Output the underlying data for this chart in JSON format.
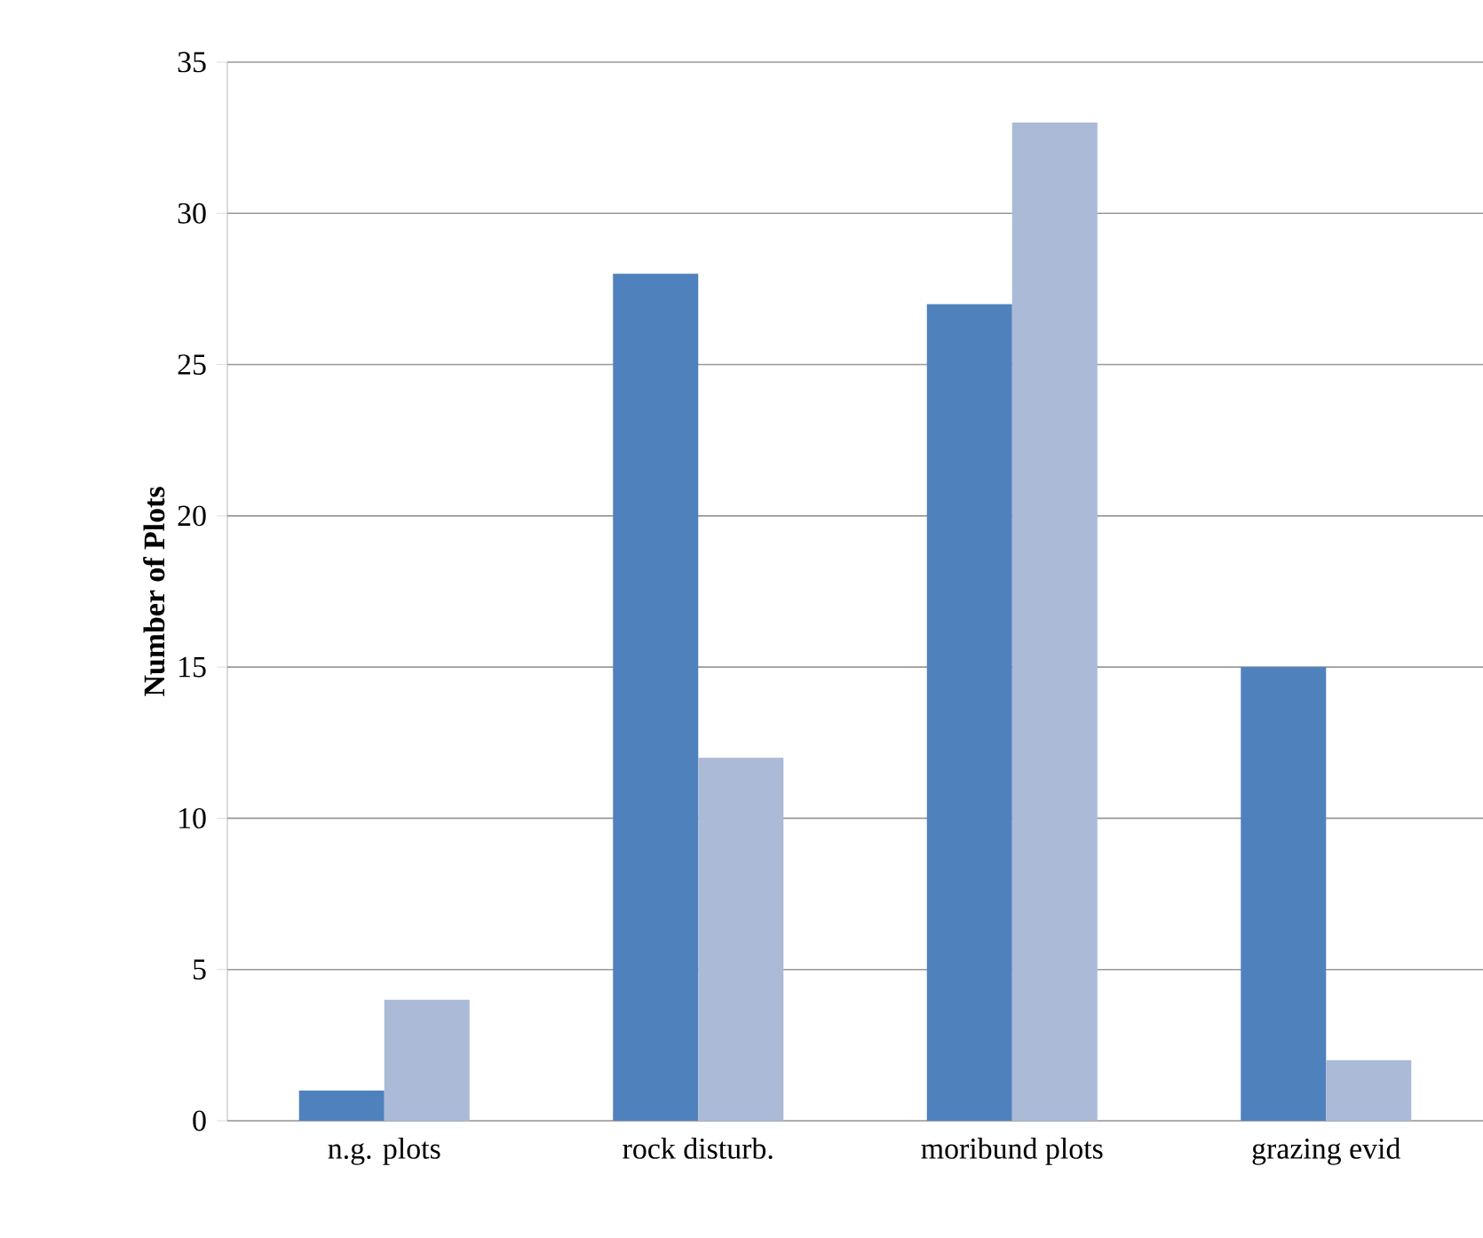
{
  "chart_data": {
    "type": "bar",
    "ylabel": "Number of Plots",
    "categories": [
      "n.g. plots",
      "rock disturb.",
      "moribund plots",
      "grazing evid"
    ],
    "series": [
      {
        "color": "#4f81bd",
        "values": [
          1,
          28,
          27,
          15
        ]
      },
      {
        "color": "#aabad7",
        "values": [
          4,
          12,
          33,
          2
        ]
      }
    ],
    "ylim": [
      0,
      35
    ],
    "yticks": [
      0,
      5,
      10,
      15,
      20,
      25,
      30,
      35
    ],
    "grid": "y"
  }
}
